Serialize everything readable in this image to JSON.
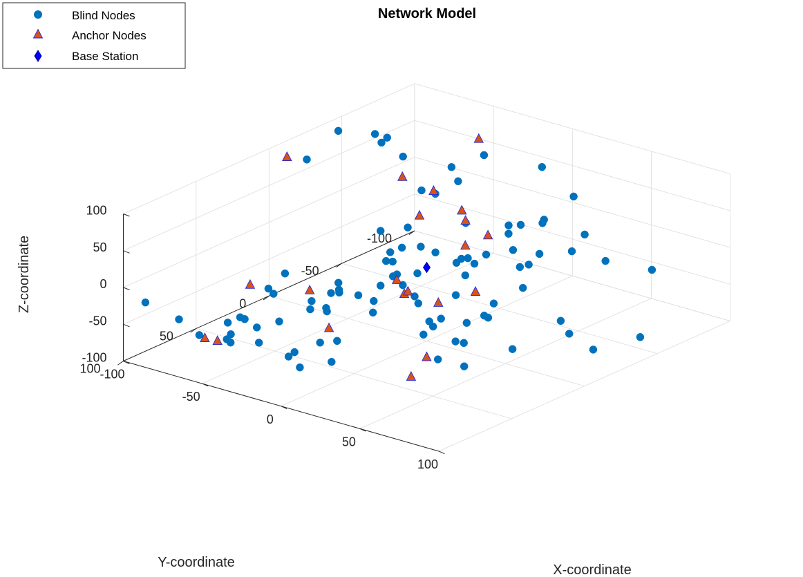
{
  "chart_data": {
    "type": "scatter3d",
    "title": "Network Model",
    "xlabel": "X-coordinate",
    "ylabel": "Y-coordinate",
    "zlabel": "Z-coordinate",
    "xlim": [
      -100,
      100
    ],
    "ylim": [
      -100,
      100
    ],
    "zlim": [
      -100,
      100
    ],
    "xticks": [
      "-100",
      "-50",
      "0",
      "50",
      "100"
    ],
    "yticks": [
      "-100",
      "-50",
      "0",
      "50",
      "100"
    ],
    "zticks": [
      "-100",
      "-50",
      "0",
      "50",
      "100"
    ],
    "grid": true,
    "legend": {
      "placement": "top-left",
      "entries": [
        "Blind Nodes",
        "Anchor Nodes",
        "Base Station"
      ]
    },
    "colors": {
      "blind": "#0072bd",
      "anchor_fill": "#d95319",
      "anchor_edge": "#2a2ad0",
      "base": "#0000ff",
      "axis": "#262626",
      "grid": "#dcdcdc"
    },
    "series": [
      {
        "name": "Blind Nodes",
        "marker": "circle",
        "points": [
          [
            -62.5,
            -36.6,
            98.9
          ],
          [
            -65.9,
            -44.2,
            96.8
          ],
          [
            -21.5,
            -62.6,
            84.0
          ],
          [
            -86.0,
            -10.8,
            84.4
          ],
          [
            -93.4,
            -40.4,
            92.6
          ],
          [
            -17.4,
            -35.9,
            93.9
          ],
          [
            -25.9,
            -49.6,
            57.3
          ],
          [
            -95.7,
            -68.1,
            62.4
          ],
          [
            5.5,
            -20.8,
            45.3
          ],
          [
            -15.6,
            -3.9,
            41.3
          ],
          [
            -36.9,
            -45.9,
            36.8
          ],
          [
            -54.8,
            -55.8,
            21.7
          ],
          [
            -88.7,
            -79.8,
            25.6
          ],
          [
            14.6,
            -54.2,
            -35.2
          ],
          [
            -9.1,
            -69.1,
            -43.1
          ],
          [
            -58.8,
            -32.0,
            -14.7
          ],
          [
            -25.9,
            -51.8,
            -50.0
          ],
          [
            -33.7,
            -56.9,
            -64.7
          ],
          [
            -31.6,
            -90.4,
            -53.5
          ],
          [
            -2.3,
            -43.3,
            -22.3
          ],
          [
            -4.1,
            -10.4,
            8.7
          ],
          [
            31.3,
            -8.3,
            -56.4
          ],
          [
            15.5,
            -9.7,
            -9.9
          ],
          [
            -7.0,
            52.7,
            12.0
          ],
          [
            61.8,
            -30.9,
            -79.5
          ],
          [
            68.9,
            28.6,
            18.5
          ],
          [
            -22.4,
            -3.8,
            -26.6
          ],
          [
            -43.4,
            -23.6,
            -39.6
          ],
          [
            4.4,
            -59.2,
            -49.1
          ],
          [
            -22.7,
            -80.8,
            -28.3
          ],
          [
            -0.2,
            -79.7,
            -10.5
          ],
          [
            -0.6,
            -33.4,
            -24.9
          ],
          [
            -40.1,
            -26.4,
            -21.1
          ],
          [
            -33.2,
            -10.9,
            -9.3
          ],
          [
            -80.8,
            47.0,
            -98.7
          ],
          [
            -66.6,
            6.9,
            -80.4
          ],
          [
            -55.1,
            77.6,
            -62.7
          ],
          [
            -84.3,
            78.8,
            -52.4
          ],
          [
            -50.1,
            80.4,
            -61.6
          ],
          [
            -2.6,
            84.3,
            -62.9
          ],
          [
            -41.8,
            79.7,
            -25.3
          ],
          [
            8.6,
            15.1,
            -30.2
          ],
          [
            -10.4,
            50.3,
            -61.7
          ],
          [
            -3.4,
            32.7,
            -18.8
          ],
          [
            -61.6,
            69.9,
            -50.9
          ],
          [
            -10.0,
            62.4,
            -53.1
          ],
          [
            -55.8,
            36.9,
            -9.7
          ],
          [
            -6.0,
            30.4,
            -38.1
          ],
          [
            -46.7,
            9.5,
            -54.4
          ],
          [
            -33.7,
            10.5,
            -49.2
          ],
          [
            -15.6,
            51.6,
            -23.6
          ],
          [
            -23.1,
            35.6,
            -3.6
          ],
          [
            -64.1,
            39.3,
            -33.2
          ],
          [
            -61.3,
            38.8,
            -39.0
          ],
          [
            -41.2,
            21.1,
            -41.4
          ],
          [
            -35.5,
            -15.3,
            -47.4
          ],
          [
            -58.9,
            64.3,
            -47.0
          ],
          [
            -32.3,
            34.1,
            -44.7
          ],
          [
            -58.4,
            53.4,
            -70.1
          ],
          [
            -60.4,
            49.8,
            -95.2
          ],
          [
            6.2,
            -3.1,
            -68.5
          ],
          [
            -25.3,
            -19.1,
            -71.7
          ],
          [
            -13.6,
            50.6,
            -91.9
          ],
          [
            -5.1,
            -3.3,
            -97.3
          ],
          [
            -32.0,
            56.1,
            -85.1
          ],
          [
            -33.1,
            59.0,
            -89.2
          ],
          [
            -67.2,
            83.4,
            -59.3
          ],
          [
            -54.9,
            -55.4,
            -54.5
          ],
          [
            -89.0,
            96.8,
            -16.5
          ],
          [
            -16.9,
            83.0,
            -10.3
          ],
          [
            -30.5,
            -16.6,
            -57.4
          ],
          [
            -36.3,
            -11.4,
            -23.6
          ],
          [
            -72.0,
            2.0,
            -99.2
          ],
          [
            -5.0,
            -9.8,
            -92.1
          ],
          [
            12.0,
            -7.0,
            -36.5
          ],
          [
            -14.0,
            -43.4,
            -34.4
          ],
          [
            -11.0,
            -5.5,
            -19.6
          ],
          [
            5.0,
            -22.0,
            -91.7
          ],
          [
            46.7,
            48.8,
            -1.5
          ],
          [
            70.5,
            10.3,
            24.5
          ],
          [
            46.9,
            -26.6,
            23.6
          ],
          [
            8.0,
            -70.5,
            78.9
          ],
          [
            59.4,
            -58.4,
            -6.5
          ],
          [
            27.4,
            -71.2,
            50.1
          ],
          [
            91.7,
            -15.0,
            -68.7
          ],
          [
            27.1,
            -35.2,
            43.3
          ],
          [
            -5.0,
            26.3,
            -4.5
          ],
          [
            42.6,
            -34.4,
            60.5
          ],
          [
            92.9,
            8.6,
            -8.1
          ],
          [
            78.7,
            -69.4,
            -16.5
          ],
          [
            36.1,
            -0.4,
            -43.7
          ],
          [
            45.7,
            29.7,
            -46.3
          ],
          [
            46.8,
            -8.2,
            -89.6
          ],
          [
            39.0,
            16.5,
            -96.0
          ],
          [
            58.1,
            -36.7,
            25.1
          ],
          [
            97.1,
            -41.4,
            -71.8
          ],
          [
            34.7,
            -70.9,
            3.2
          ],
          [
            52.7,
            31.6,
            -42.4
          ],
          [
            32.3,
            27.3,
            -81.0
          ]
        ]
      },
      {
        "name": "Anchor Nodes",
        "marker": "triangle",
        "points": [
          [
            -33.1,
            -71.6,
            90.8
          ],
          [
            -94.4,
            -6.3,
            86.4
          ],
          [
            -80.9,
            -70.9,
            10.4
          ],
          [
            -35.1,
            -42.7,
            44.5
          ],
          [
            -16.7,
            -42.2,
            29.5
          ],
          [
            -8.4,
            -35.7,
            26.5
          ],
          [
            -23.6,
            -20.6,
            37.5
          ],
          [
            9.9,
            -31.3,
            21.7
          ],
          [
            65.6,
            37.6,
            40.1
          ],
          [
            28.3,
            22.7,
            -10.8
          ],
          [
            -8.6,
            -35.8,
            -7.6
          ],
          [
            -31.6,
            -13.7,
            -48.8
          ],
          [
            -29.1,
            35.6,
            -69.0
          ],
          [
            -74.4,
            40.7,
            -33.3
          ],
          [
            -44.0,
            32.7,
            -29.4
          ],
          [
            14.3,
            30.9,
            -0.1
          ],
          [
            30.7,
            33.3,
            -73.8
          ],
          [
            37.1,
            50.9,
            -81.0
          ],
          [
            -54.9,
            84.2,
            -59.2
          ],
          [
            -32.7,
            -22.5,
            -72.9
          ],
          [
            -65.9,
            81.0,
            -65.0
          ]
        ]
      },
      {
        "name": "Base Station",
        "marker": "diamond",
        "points": [
          [
            0,
            0,
            0
          ]
        ]
      }
    ]
  }
}
